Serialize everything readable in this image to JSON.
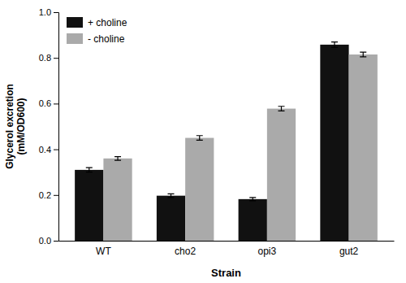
{
  "chart_data": {
    "type": "bar",
    "categories": [
      "WT",
      "cho2",
      "opi3",
      "gut2"
    ],
    "series": [
      {
        "name": "+ choline",
        "color": "#111111",
        "values": [
          0.31,
          0.197,
          0.182,
          0.858
        ],
        "errors": [
          0.01,
          0.008,
          0.007,
          0.012
        ]
      },
      {
        "name": "- choline",
        "color": "#aaaaaa",
        "values": [
          0.36,
          0.45,
          0.578,
          0.815
        ],
        "errors": [
          0.008,
          0.01,
          0.01,
          0.01
        ]
      }
    ],
    "xlabel": "Strain",
    "ylabel": "Glycerol excretion\n(mM/OD600)",
    "ylim": [
      0,
      1.0
    ],
    "yticks": [
      {
        "value": 0,
        "label": "0.0"
      },
      0.2,
      0.4,
      0.6,
      0.8,
      {
        "value": 1.0,
        "label": "1.0"
      }
    ],
    "legend": "upper left",
    "grid": false
  }
}
